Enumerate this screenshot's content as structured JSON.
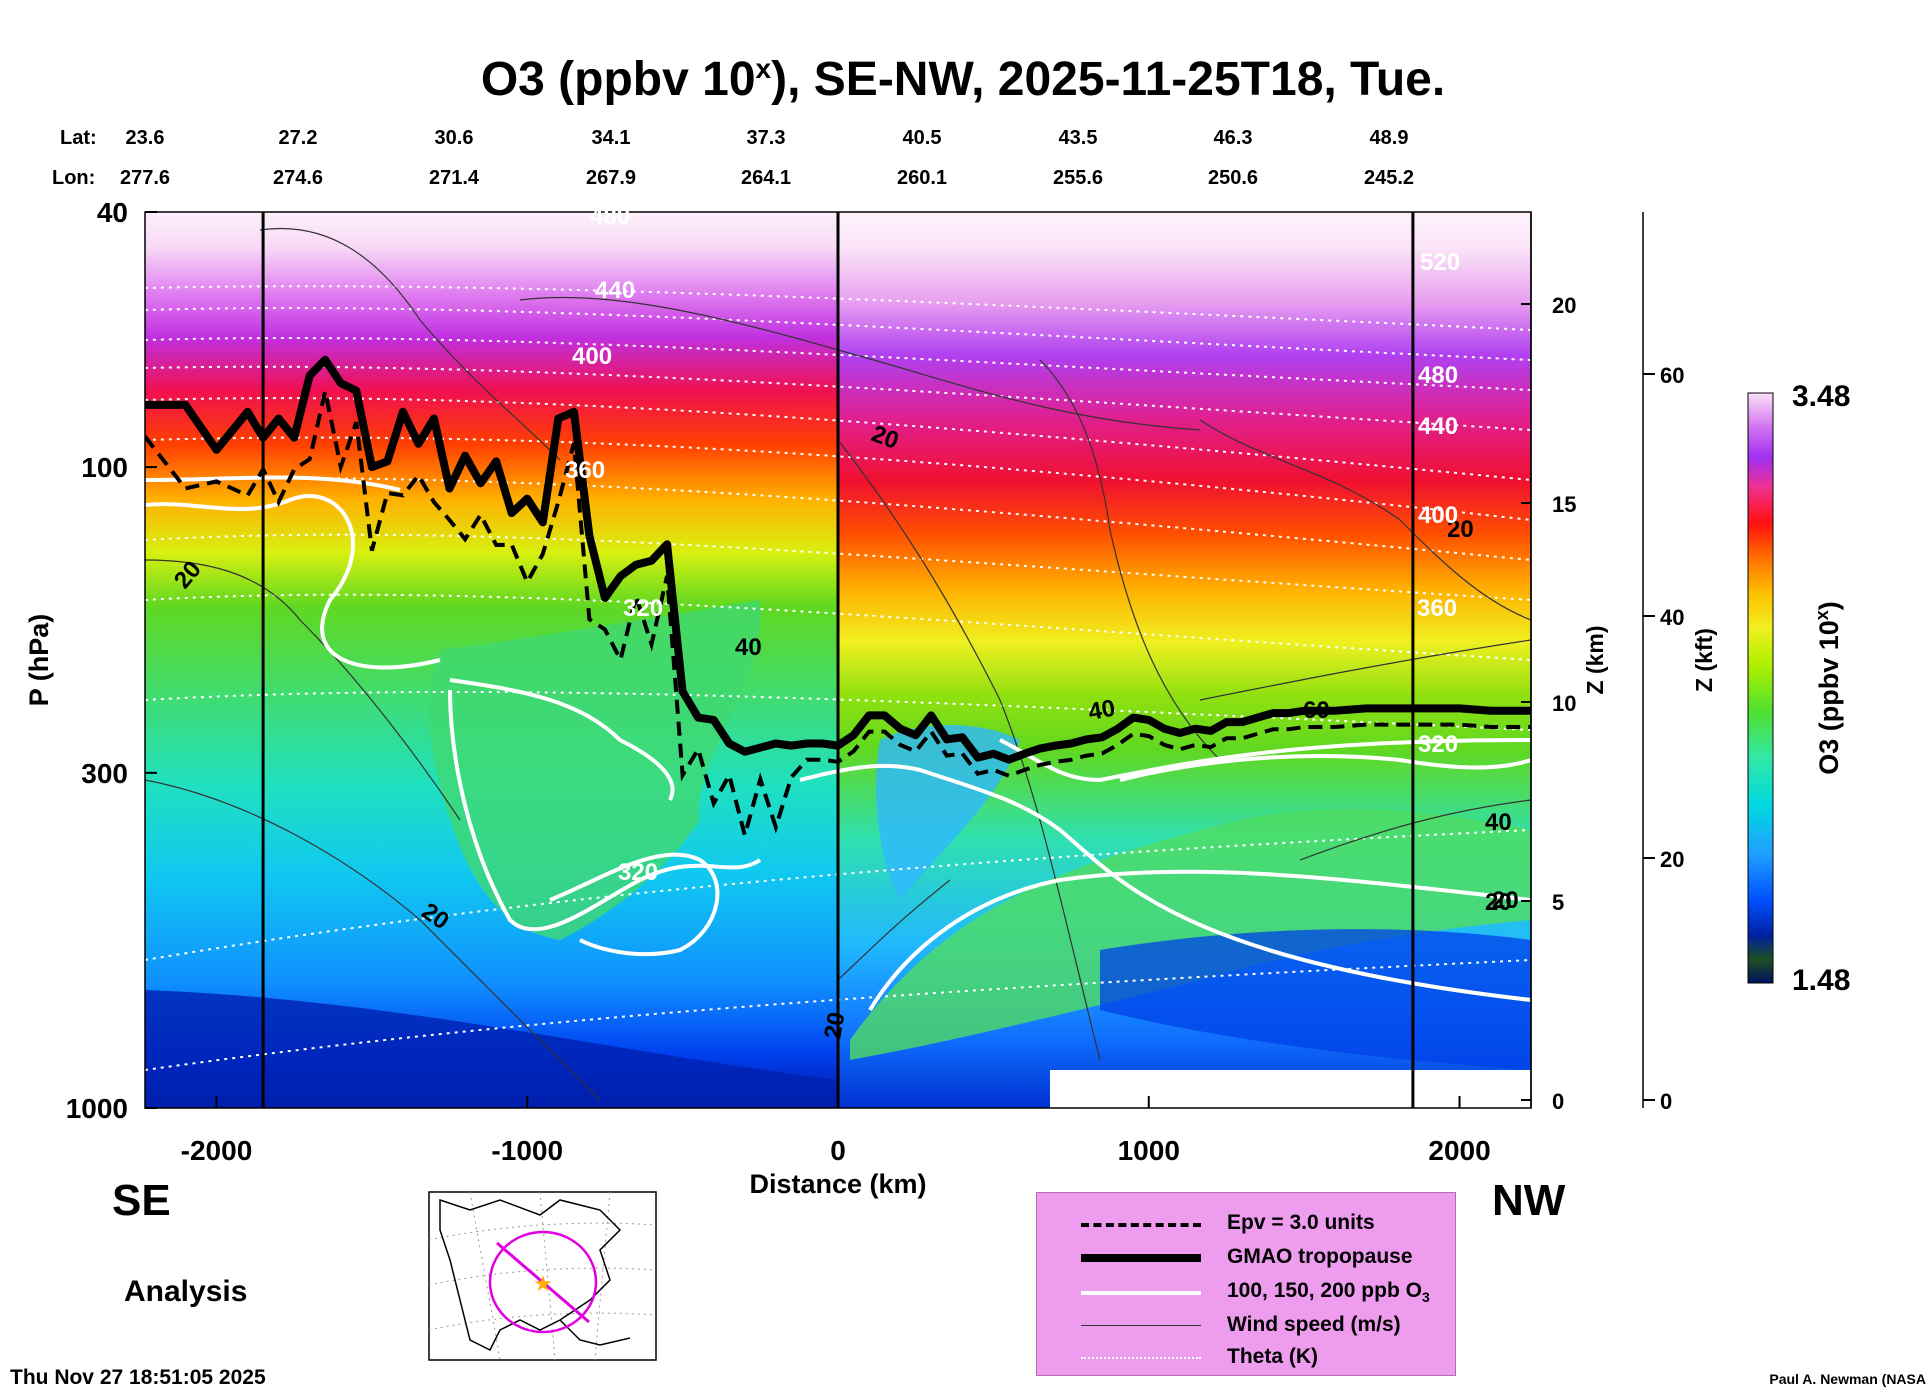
{
  "title": "O3 (ppbv 10",
  "title_sup": "x",
  "title_rest": "), SE-NW, 2025-11-25T18, Tue.",
  "lat_label": "Lat:",
  "lon_label": "Lon:",
  "lats": [
    "23.6",
    "27.2",
    "30.6",
    "34.1",
    "37.3",
    "40.5",
    "43.5",
    "46.3",
    "48.9"
  ],
  "lons": [
    "277.6",
    "274.6",
    "271.4",
    "267.9",
    "264.1",
    "260.1",
    "255.6",
    "250.6",
    "245.2"
  ],
  "direction_left": "SE",
  "direction_right": "NW",
  "mode_label": "Analysis",
  "timestamp": "Thu Nov 27 18:51:05 2025",
  "credit": "Paul A. Newman (NASA",
  "colors": {
    "tropopause": "#000000",
    "ozone_contour": "#ffffff",
    "legend_bg": "#ee9cee",
    "map_track": "#e000e0",
    "map_star": "#ffb000"
  },
  "legend": {
    "items": [
      {
        "label": "Epv = 3.0 units",
        "style": "dashed"
      },
      {
        "label": "GMAO tropopause",
        "style": "thick"
      },
      {
        "label": "100, 150, 200 ppb O",
        "sub": "3",
        "style": "white"
      },
      {
        "label": "Wind speed (m/s)",
        "style": "thin"
      },
      {
        "label": "Theta (K)",
        "style": "dotted"
      }
    ]
  },
  "colorbar": {
    "max_label": "3.48",
    "min_label": "1.48",
    "title": "O3 (ppbv 10",
    "title_sup": "x",
    "title_end": ")"
  },
  "chart_data": {
    "type": "heatmap",
    "title": "O3 (ppbv 10^x), SE-NW, 2025-11-25T18, Tue.",
    "xlabel": "Distance (km)",
    "ylabel": "P (hPa)",
    "y2label": "Z (km)",
    "y3label": "Z (kft)",
    "xlim": [
      -2230,
      2230
    ],
    "ylim": [
      1000,
      40
    ],
    "yscale": "log",
    "x_ticks": [
      -2000,
      -1000,
      0,
      1000,
      2000
    ],
    "y_ticks": [
      1000,
      300,
      100,
      40
    ],
    "zkm_ticks": [
      0,
      5,
      10,
      15,
      20
    ],
    "zkft_ticks": [
      0,
      20,
      40,
      60
    ],
    "colorbar_range": [
      1.48,
      3.48
    ],
    "vertical_markers_km": [
      -1850,
      0,
      1850
    ],
    "tropopause": {
      "x": [
        -2230,
        -2100,
        -2000,
        -1900,
        -1850,
        -1800,
        -1750,
        -1700,
        -1650,
        -1600,
        -1550,
        -1500,
        -1450,
        -1400,
        -1350,
        -1300,
        -1250,
        -1200,
        -1150,
        -1100,
        -1050,
        -1000,
        -950,
        -900,
        -850,
        -800,
        -750,
        -700,
        -650,
        -600,
        -550,
        -500,
        -450,
        -400,
        -350,
        -300,
        -250,
        -200,
        -150,
        -100,
        -50,
        0,
        50,
        100,
        150,
        200,
        250,
        300,
        350,
        400,
        450,
        500,
        550,
        600,
        650,
        700,
        750,
        800,
        850,
        900,
        950,
        1000,
        1050,
        1100,
        1150,
        1200,
        1250,
        1300,
        1350,
        1400,
        1450,
        1500,
        1600,
        1700,
        1800,
        1900,
        2000,
        2100,
        2230
      ],
      "p": [
        80,
        80,
        94,
        82,
        90,
        84,
        90,
        72,
        68,
        74,
        76,
        100,
        98,
        82,
        92,
        84,
        108,
        96,
        106,
        98,
        118,
        112,
        122,
        84,
        82,
        128,
        160,
        148,
        142,
        140,
        132,
        224,
        246,
        248,
        270,
        278,
        274,
        270,
        272,
        270,
        270,
        272,
        262,
        244,
        244,
        256,
        262,
        244,
        266,
        264,
        284,
        280,
        286,
        280,
        275,
        272,
        270,
        266,
        264,
        256,
        246,
        248,
        256,
        260,
        256,
        258,
        250,
        250,
        246,
        242,
        242,
        240,
        240,
        238,
        238,
        238,
        238,
        240,
        240
      ]
    },
    "wind_labels": [
      "20",
      "20",
      "20",
      "40",
      "20",
      "40",
      "60",
      "20",
      "40",
      "20",
      "20"
    ],
    "theta_labels": [
      "480",
      "440",
      "400",
      "360",
      "320",
      "320",
      "400",
      "440",
      "480",
      "520",
      "360",
      "320"
    ]
  }
}
